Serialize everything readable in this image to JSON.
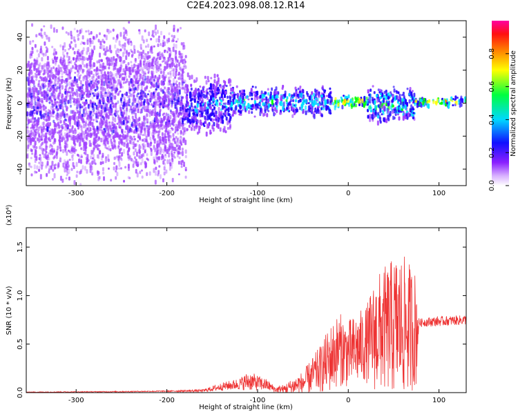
{
  "title": "C2E4.2023.098.08.12.R14",
  "chart_data": [
    {
      "type": "heatmap",
      "name": "spectrogram",
      "xlabel": "Height of straight line (km)",
      "ylabel": "Frequency (Hz)",
      "xlim": [
        -355,
        130
      ],
      "ylim": [
        -50,
        50
      ],
      "xticks": [
        -300,
        -200,
        -100,
        0,
        100
      ],
      "yticks": [
        -40,
        -20,
        0,
        20,
        40
      ],
      "colorbar": {
        "label": "Normalized spectral amplitude",
        "range": [
          0,
          1
        ],
        "ticks": [
          "0.0",
          "0.2",
          "0.4",
          "0.6",
          "0.8"
        ],
        "tick_values": [
          0,
          0.2,
          0.4,
          0.6,
          0.8
        ],
        "colors": [
          "#ffffff",
          "#a040ff",
          "#2000ff",
          "#00e0ff",
          "#00ff00",
          "#ffff00",
          "#ff8000",
          "#ff0000",
          "#ff00a0"
        ]
      },
      "segments": [
        {
          "x": [
            -355,
            -180
          ],
          "center_hz": 0,
          "halfwidth_hz": 50,
          "amplitude": 0.2
        },
        {
          "x": [
            -180,
            -130
          ],
          "center_hz": 0,
          "halfwidth_hz": 20,
          "amplitude": 0.3
        },
        {
          "x": [
            -130,
            -20
          ],
          "center_hz": 2,
          "halfwidth_hz": 10,
          "amplitude": 0.4
        },
        {
          "x": [
            -20,
            20
          ],
          "center_hz": 2,
          "halfwidth_hz": 4,
          "amplitude": 0.7
        },
        {
          "x": [
            20,
            72
          ],
          "center_hz": 0,
          "halfwidth_hz": 12,
          "amplitude": 0.45
        },
        {
          "x": [
            72,
            130
          ],
          "center_hz": 2,
          "halfwidth_hz": 3,
          "amplitude": 0.6
        }
      ]
    },
    {
      "type": "line",
      "name": "snr",
      "xlabel": "Height of straight line (km)",
      "ylabel": "SNR (10 * v/v)",
      "y_scale": "(x10⁴)",
      "xlim": [
        -355,
        130
      ],
      "ylim": [
        0,
        1.7
      ],
      "xticks": [
        -300,
        -200,
        -100,
        0,
        100
      ],
      "yticks": [
        "0.0",
        "0.5",
        "1.0",
        "1.5"
      ],
      "ytick_values": [
        0,
        0.5,
        1.0,
        1.5
      ],
      "color": "#ee3333",
      "envelope": {
        "x": [
          -355,
          -250,
          -200,
          -160,
          -140,
          -120,
          -110,
          -90,
          -80,
          -70,
          -50,
          -30,
          -20,
          -10,
          0,
          20,
          30,
          40,
          55,
          65,
          75,
          78,
          90,
          110,
          130
        ],
        "base": [
          0.005,
          0.01,
          0.015,
          0.02,
          0.06,
          0.09,
          0.12,
          0.08,
          0.03,
          0.04,
          0.1,
          0.25,
          0.35,
          0.45,
          0.4,
          0.5,
          0.6,
          0.65,
          0.7,
          0.68,
          0.65,
          0.72,
          0.73,
          0.74,
          0.75
        ],
        "amp": [
          0.004,
          0.005,
          0.006,
          0.015,
          0.04,
          0.06,
          0.1,
          0.06,
          0.03,
          0.05,
          0.12,
          0.25,
          0.35,
          0.38,
          0.35,
          0.4,
          0.6,
          0.65,
          0.75,
          0.7,
          0.6,
          0.04,
          0.05,
          0.05,
          0.05
        ]
      }
    }
  ]
}
